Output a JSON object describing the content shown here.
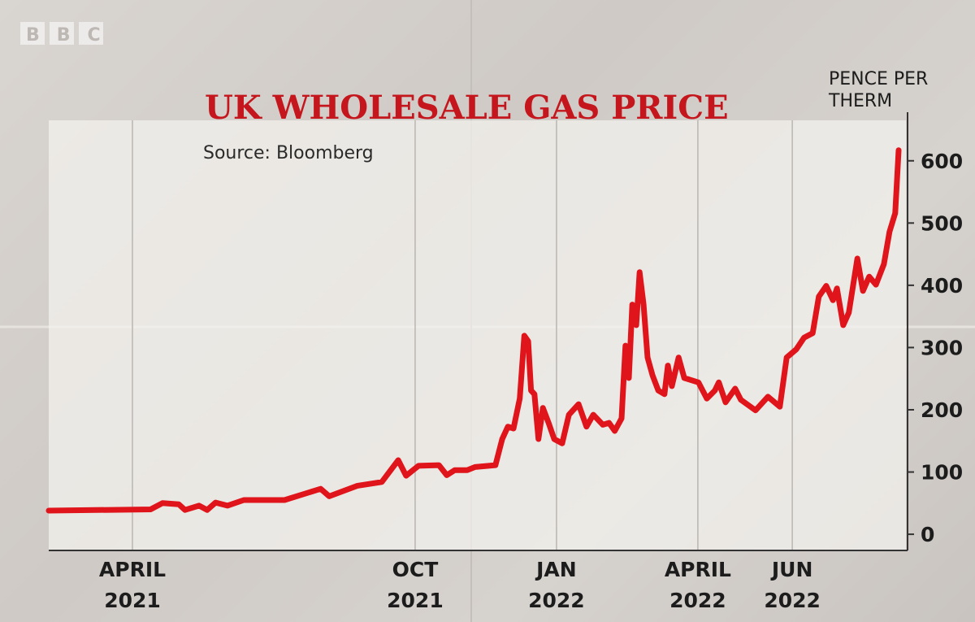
{
  "logo": "BBC",
  "chart_data": {
    "type": "line",
    "title": "UK WHOLESALE GAS PRICE",
    "subtitle": "Source: Bloomberg",
    "ylabel": "PENCE PER THERM",
    "color": "#e0141b",
    "grid": true,
    "xlim": [
      2021.102,
      2022.618
    ],
    "xticks": [
      {
        "value": 2021.25,
        "label": "APRIL 2021"
      },
      {
        "value": 2021.75,
        "label": "OCT 2021"
      },
      {
        "value": 2022.0,
        "label": "JAN 2022"
      },
      {
        "value": 2022.25,
        "label": "APRIL 2022"
      },
      {
        "value": 2022.417,
        "label": "JUN 2022"
      }
    ],
    "ylim": [
      -26,
      665
    ],
    "yticks": [
      0,
      100,
      200,
      300,
      400,
      500,
      600
    ],
    "x": [
      2021.102,
      2021.282,
      2021.303,
      2021.332,
      2021.343,
      2021.368,
      2021.382,
      2021.397,
      2021.418,
      2021.447,
      2021.519,
      2021.583,
      2021.598,
      2021.648,
      2021.691,
      2021.72,
      2021.734,
      2021.756,
      2021.792,
      2021.806,
      2021.82,
      2021.842,
      2021.856,
      2021.892,
      2021.904,
      2021.914,
      2021.924,
      2021.935,
      2021.943,
      2021.95,
      2021.955,
      2021.961,
      2021.968,
      2021.976,
      2021.986,
      2021.996,
      2022.01,
      2022.022,
      2022.039,
      2022.053,
      2022.065,
      2022.082,
      2022.093,
      2022.103,
      2022.115,
      2022.122,
      2022.128,
      2022.134,
      2022.141,
      2022.147,
      2022.154,
      2022.161,
      2022.17,
      2022.18,
      2022.191,
      2022.197,
      2022.204,
      2022.216,
      2022.226,
      2022.251,
      2022.266,
      2022.28,
      2022.287,
      2022.299,
      2022.316,
      2022.326,
      2022.352,
      2022.374,
      2022.395,
      2022.407,
      2022.424,
      2022.438,
      2022.453,
      2022.464,
      2022.477,
      2022.489,
      2022.496,
      2022.507,
      2022.517,
      2022.532,
      2022.542,
      2022.553,
      2022.565,
      2022.579,
      2022.589,
      2022.599,
      2022.605
    ],
    "values": [
      38,
      40,
      50,
      48,
      39,
      46,
      39,
      51,
      46,
      55,
      55,
      73,
      61,
      78,
      84,
      119,
      94,
      110,
      111,
      95,
      103,
      103,
      108,
      111,
      153,
      173,
      170,
      218,
      319,
      310,
      231,
      225,
      153,
      203,
      179,
      153,
      146,
      192,
      209,
      173,
      192,
      176,
      179,
      166,
      186,
      303,
      251,
      369,
      336,
      421,
      369,
      284,
      255,
      231,
      225,
      271,
      238,
      284,
      251,
      244,
      218,
      231,
      244,
      212,
      234,
      216,
      199,
      221,
      205,
      284,
      297,
      316,
      323,
      382,
      399,
      376,
      395,
      336,
      356,
      443,
      391,
      414,
      401,
      434,
      486,
      516,
      617
    ]
  }
}
